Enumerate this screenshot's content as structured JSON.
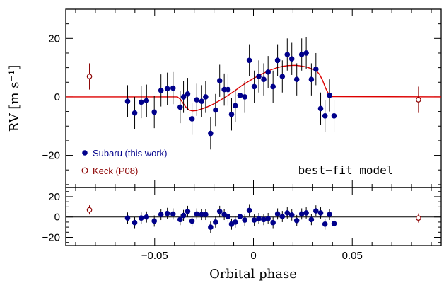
{
  "chart_data": {
    "type": "scatter",
    "xlabel": "Orbital phase",
    "ylabel": "RV [m s⁻¹]",
    "annotation": "best−fit model",
    "colors": {
      "subaru": "#00008b",
      "keck": "#8b0000",
      "model": "#dd0000"
    },
    "xlim": [
      -0.095,
      0.095
    ],
    "xticks": [
      -0.05,
      0,
      0.05
    ],
    "xtick_labels": [
      "−0.05",
      "0",
      "0.05"
    ],
    "main_panel": {
      "ylim": [
        -31,
        30
      ],
      "yticks": [
        -20,
        0,
        20
      ],
      "ytick_labels": [
        "−20",
        "0",
        "20"
      ]
    },
    "residual_panel": {
      "ylim": [
        -28,
        29
      ],
      "yticks": [
        -20,
        0,
        20
      ],
      "ytick_labels": [
        "−20",
        "0",
        "20"
      ]
    },
    "series": [
      {
        "name": "Subaru (this work)",
        "marker": "filled-circle",
        "x": [
          -0.0637,
          -0.0601,
          -0.0568,
          -0.0541,
          -0.0502,
          -0.0468,
          -0.0436,
          -0.0407,
          -0.0371,
          -0.0354,
          -0.0333,
          -0.0311,
          -0.0287,
          -0.0262,
          -0.0242,
          -0.0217,
          -0.0192,
          -0.0171,
          -0.0148,
          -0.0129,
          -0.0111,
          -0.0092,
          -0.0068,
          -0.0044,
          -0.0021,
          0.0004,
          0.0027,
          0.0052,
          0.0074,
          0.0099,
          0.0122,
          0.0146,
          0.0171,
          0.0194,
          0.0219,
          0.0244,
          0.0267,
          0.0293,
          0.0316,
          0.034,
          0.0362,
          0.0385,
          0.0408
        ],
        "y": [
          -1.5,
          -5.5,
          -1.8,
          -1.3,
          -5.2,
          2.2,
          2.8,
          3.0,
          -3.5,
          0.0,
          1.0,
          -7.5,
          -1.0,
          -1.5,
          0.0,
          -12.5,
          -4.5,
          5.5,
          2.5,
          2.5,
          -6.0,
          -3.0,
          0.5,
          0.0,
          12.5,
          3.5,
          7.0,
          6.0,
          8.5,
          3.5,
          12.5,
          7.0,
          14.5,
          13.0,
          6.0,
          14.5,
          15.0,
          6.0,
          9.5,
          -4.0,
          -6.5,
          0.5,
          -6.5
        ],
        "residual": [
          -1.0,
          -5.5,
          -1.0,
          0.0,
          -4.0,
          2.5,
          3.5,
          3.0,
          -2.5,
          1.5,
          5.5,
          -4.0,
          3.0,
          2.5,
          2.5,
          -10.0,
          -5.0,
          5.5,
          2.5,
          0.5,
          -7.0,
          -5.0,
          0.5,
          -3.0,
          6.5,
          -3.0,
          -1.5,
          -2.5,
          -1.5,
          -5.5,
          3.0,
          0.5,
          4.0,
          2.0,
          -3.5,
          3.0,
          4.0,
          -2.5,
          6.0,
          4.0,
          -7.0,
          2.5,
          -6.5
        ],
        "errors": [
          5.5,
          5.5,
          5.5,
          5.5,
          5.5,
          5.5,
          5.5,
          5.5,
          5.5,
          5.5,
          5.5,
          5.5,
          5.5,
          5.5,
          5.5,
          5.5,
          5.5,
          5.5,
          5.5,
          5.5,
          5.5,
          5.5,
          5.5,
          5.5,
          5.5,
          5.5,
          5.5,
          5.5,
          5.5,
          5.5,
          5.5,
          5.5,
          5.5,
          5.5,
          5.5,
          5.5,
          5.5,
          5.5,
          5.5,
          5.5,
          5.5,
          5.5,
          5.5
        ]
      },
      {
        "name": "Keck (P08)",
        "marker": "open-circle",
        "x": [
          -0.083,
          0.0835
        ],
        "y": [
          7.0,
          -1.0
        ],
        "residual": [
          7.0,
          -1.0
        ],
        "errors": [
          4.5,
          4.5
        ]
      }
    ],
    "model": {
      "x": [
        -0.095,
        -0.0385,
        -0.037,
        -0.0355,
        -0.034,
        -0.0325,
        -0.031,
        -0.029,
        -0.027,
        -0.024,
        -0.021,
        -0.018,
        -0.015,
        -0.012,
        -0.009,
        -0.006,
        -0.003,
        0.0,
        0.003,
        0.006,
        0.009,
        0.012,
        0.015,
        0.018,
        0.021,
        0.024,
        0.027,
        0.03,
        0.032,
        0.0335,
        0.035,
        0.0365,
        0.038,
        0.0395,
        0.095
      ],
      "y": [
        0,
        0,
        -0.8,
        -2.3,
        -3.7,
        -4.5,
        -4.8,
        -4.7,
        -4.3,
        -3.6,
        -2.7,
        -1.6,
        -0.4,
        0.9,
        2.3,
        3.8,
        5.1,
        6.3,
        7.4,
        8.4,
        9.3,
        10.0,
        10.5,
        10.7,
        10.8,
        10.6,
        10.2,
        9.5,
        8.8,
        7.6,
        5.6,
        3.0,
        1.0,
        0.1,
        0
      ]
    }
  }
}
